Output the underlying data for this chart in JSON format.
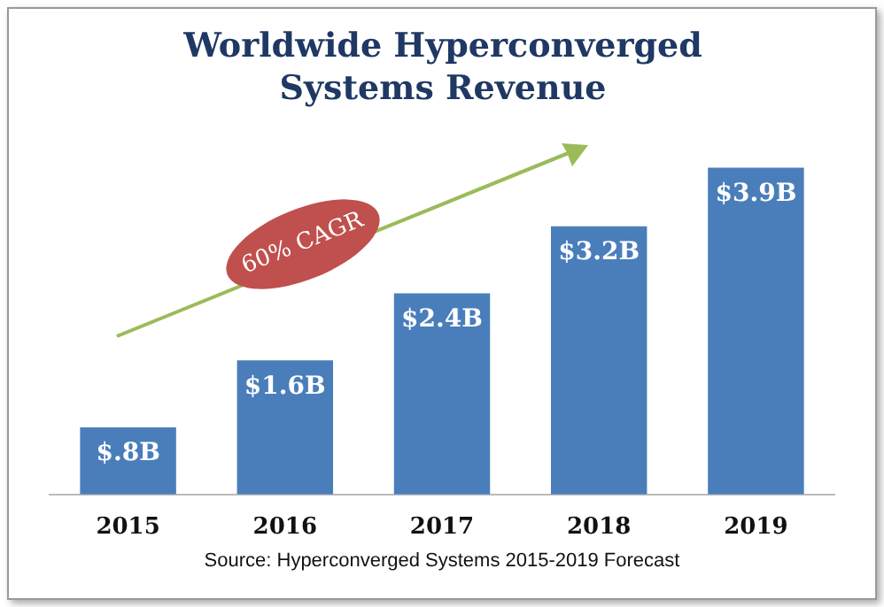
{
  "chart_data": {
    "type": "bar",
    "title": "Worldwide Hyperconverged Systems Revenue",
    "categories": [
      "2015",
      "2016",
      "2017",
      "2018",
      "2019"
    ],
    "values": [
      0.8,
      1.6,
      2.4,
      3.2,
      3.9
    ],
    "value_labels": [
      "$.8B",
      "$1.6B",
      "$2.4B",
      "$3.2B",
      "$3.9B"
    ],
    "color": "#4a7ebb",
    "grid": false,
    "legend": false,
    "annotations": [
      "60% CAGR",
      "Source: Hyperconverged Systems 2015-2019 Forecast"
    ]
  }
}
